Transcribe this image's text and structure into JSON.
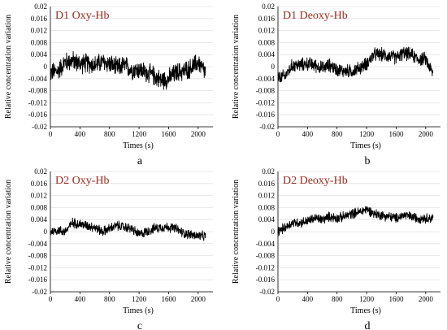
{
  "chart_data": [
    {
      "type": "line",
      "panel_letter": "a",
      "title": "D1 Oxy-Hb",
      "xlabel": "Times (s)",
      "ylabel": "Relative concentration variation",
      "xlim": [
        0,
        2200
      ],
      "ylim": [
        -0.02,
        0.02
      ],
      "xticks": [
        0,
        400,
        800,
        1200,
        1600,
        2000
      ],
      "yticks": [
        -0.02,
        -0.016,
        -0.012,
        -0.008,
        -0.004,
        0,
        0.004,
        0.008,
        0.012,
        0.016,
        0.02
      ],
      "ytick_labels": [
        "-0.02",
        "-0.016",
        "-0.012",
        "-0.008",
        "-0.004",
        "0",
        "0.004",
        "0.008",
        "0.012",
        "0.016",
        "0.02"
      ],
      "grid": true,
      "series": [
        {
          "x": [
            0,
            100,
            200,
            300,
            400,
            500,
            600,
            700,
            800,
            900,
            1000,
            1100,
            1200,
            1300,
            1400,
            1500,
            1600,
            1700,
            1800,
            1900,
            2000,
            2100
          ],
          "y": [
            -0.002,
            -0.0015,
            0.0015,
            0.002,
            0.001,
            0.0012,
            0.0005,
            0.0015,
            0.001,
            -0.0005,
            0.0005,
            -0.001,
            -0.001,
            -0.002,
            -0.003,
            -0.0045,
            -0.004,
            -0.002,
            -0.0015,
            -0.0005,
            0.0015,
            -0.002
          ],
          "noise": 0.0032
        }
      ]
    },
    {
      "type": "line",
      "panel_letter": "b",
      "title": "D1 Deoxy-Hb",
      "xlabel": "Times (s)",
      "ylabel": "Relative concentration variation",
      "xlim": [
        0,
        2200
      ],
      "ylim": [
        -0.02,
        0.02
      ],
      "xticks": [
        0,
        400,
        800,
        1200,
        1600,
        2000
      ],
      "yticks": [
        -0.02,
        -0.016,
        -0.012,
        -0.008,
        -0.004,
        0,
        0.004,
        0.008,
        0.012,
        0.016,
        0.02
      ],
      "ytick_labels": [
        "-0.02",
        "-0.016",
        "-0.012",
        "-0.008",
        "-0.004",
        "0",
        "0.004",
        "0.008",
        "0.012",
        "0.016",
        "0.02"
      ],
      "grid": true,
      "series": [
        {
          "x": [
            0,
            100,
            200,
            300,
            400,
            500,
            600,
            700,
            800,
            900,
            1000,
            1100,
            1200,
            1300,
            1400,
            1500,
            1600,
            1700,
            1800,
            1900,
            2000,
            2100
          ],
          "y": [
            -0.004,
            -0.003,
            0.0005,
            0.0005,
            0.001,
            0.0005,
            -0.0005,
            0.0005,
            -0.001,
            -0.0015,
            -0.0015,
            -0.0005,
            0.001,
            0.004,
            0.004,
            0.0035,
            0.003,
            0.0045,
            0.004,
            0.0025,
            0.0025,
            -0.0025
          ],
          "noise": 0.0022
        }
      ]
    },
    {
      "type": "line",
      "panel_letter": "c",
      "title": "D2 Oxy-Hb",
      "xlabel": "Times (s)",
      "ylabel": "Relative concentration variation",
      "xlim": [
        0,
        2200
      ],
      "ylim": [
        -0.02,
        0.02
      ],
      "xticks": [
        0,
        400,
        800,
        1200,
        1600,
        2000
      ],
      "yticks": [
        -0.02,
        -0.016,
        -0.012,
        -0.008,
        -0.004,
        0,
        0.004,
        0.008,
        0.012,
        0.016,
        0.02
      ],
      "ytick_labels": [
        "-0.02",
        "-0.016",
        "-0.012",
        "-0.008",
        "-0.004",
        "0",
        "0.004",
        "0.008",
        "0.012",
        "0.016",
        "0.02"
      ],
      "grid": true,
      "series": [
        {
          "x": [
            0,
            100,
            200,
            300,
            400,
            500,
            600,
            700,
            800,
            900,
            1000,
            1100,
            1200,
            1300,
            1400,
            1500,
            1600,
            1700,
            1800,
            1900,
            2000,
            2100
          ],
          "y": [
            0,
            0.0005,
            0,
            0.003,
            0.0025,
            0.002,
            0.0015,
            0,
            0.001,
            0.002,
            0.0015,
            0.001,
            -0.001,
            0,
            0.001,
            0.0015,
            0.0015,
            0.001,
            -0.0005,
            -0.001,
            -0.0015,
            -0.0015
          ],
          "noise": 0.0016
        }
      ]
    },
    {
      "type": "line",
      "panel_letter": "d",
      "title": "D2 Deoxy-Hb",
      "xlabel": "Times (s)",
      "ylabel": "Relative concentration variation",
      "xlim": [
        0,
        2200
      ],
      "ylim": [
        -0.02,
        0.02
      ],
      "xticks": [
        0,
        400,
        800,
        1200,
        1600,
        2000
      ],
      "yticks": [
        -0.02,
        -0.016,
        -0.012,
        -0.008,
        -0.004,
        0,
        0.004,
        0.008,
        0.012,
        0.016,
        0.02
      ],
      "ytick_labels": [
        "-0.02",
        "-0.016",
        "-0.012",
        "-0.008",
        "-0.004",
        "0",
        "0.004",
        "0.008",
        "0.012",
        "0.016",
        "0.02"
      ],
      "grid": true,
      "series": [
        {
          "x": [
            0,
            100,
            200,
            300,
            400,
            500,
            600,
            700,
            800,
            900,
            1000,
            1100,
            1200,
            1300,
            1400,
            1500,
            1600,
            1700,
            1800,
            1900,
            2000,
            2100
          ],
          "y": [
            0,
            0.0015,
            0.003,
            0.003,
            0.0035,
            0.0045,
            0.004,
            0.005,
            0.0045,
            0.005,
            0.006,
            0.0065,
            0.0075,
            0.006,
            0.0055,
            0.005,
            0.0045,
            0.0055,
            0.005,
            0.0045,
            0.0045,
            0.0045
          ],
          "noise": 0.0016
        }
      ]
    }
  ]
}
